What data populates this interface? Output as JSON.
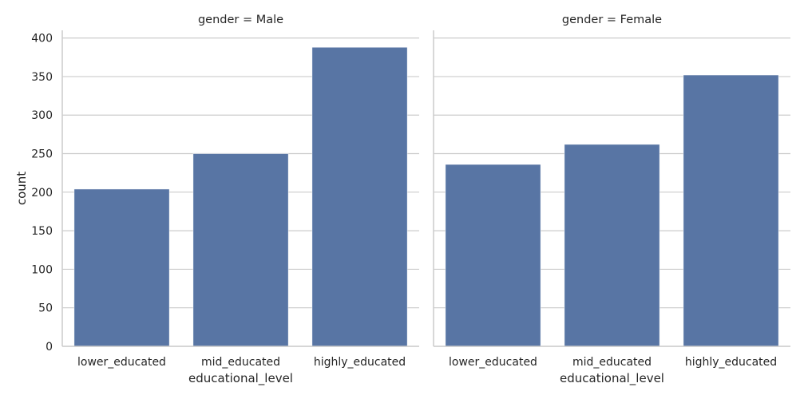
{
  "chart_data": {
    "type": "bar",
    "facet_variable": "gender",
    "facets": [
      {
        "title": "gender = Male",
        "categories": [
          "lower_educated",
          "mid_educated",
          "highly_educated"
        ],
        "values": [
          204,
          250,
          388
        ]
      },
      {
        "title": "gender = Female",
        "categories": [
          "lower_educated",
          "mid_educated",
          "highly_educated"
        ],
        "values": [
          236,
          262,
          352
        ]
      }
    ],
    "xlabel": "educational_level",
    "ylabel": "count",
    "ylim": [
      0,
      410
    ],
    "yticks": [
      0,
      50,
      100,
      150,
      200,
      250,
      300,
      350,
      400
    ],
    "grid": "horizontal",
    "shared_y": true,
    "bar_color": "#5875a4",
    "grid_color": "#cccccc",
    "text_color": "#262626"
  }
}
